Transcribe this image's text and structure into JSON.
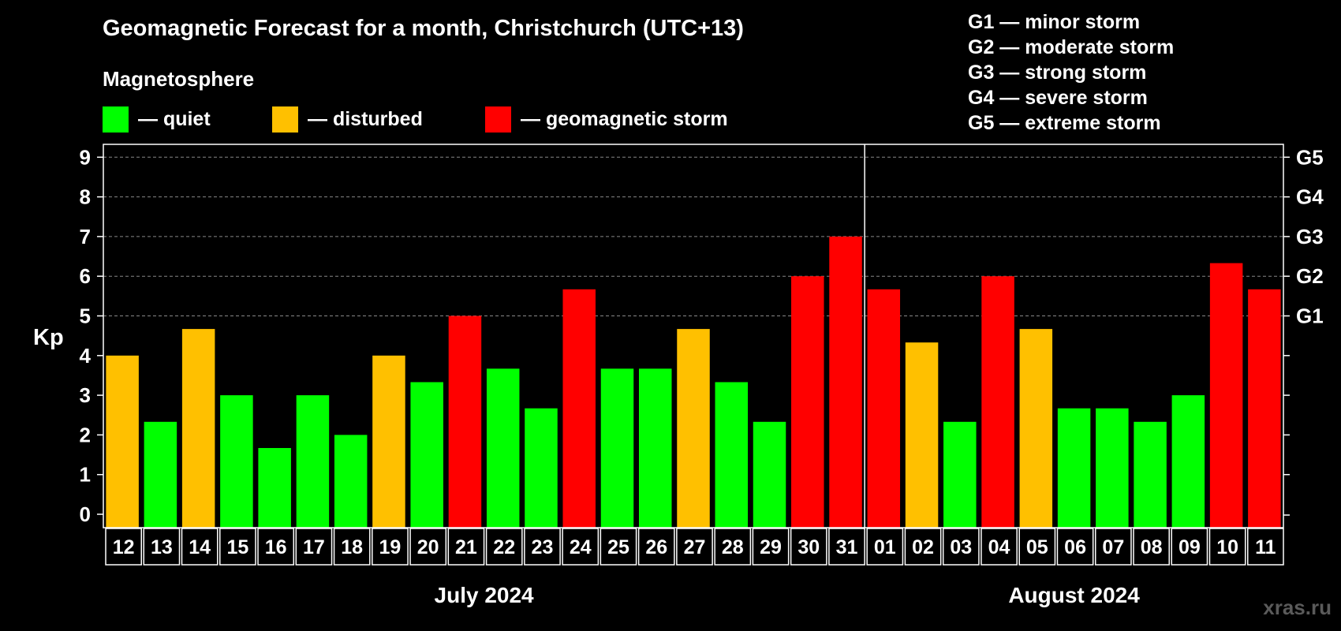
{
  "title": "Geomagnetic Forecast for a month, Christchurch (UTC+13)",
  "subtitle": "Magnetosphere",
  "legend": [
    {
      "label": "— quiet",
      "color": "#00ff00"
    },
    {
      "label": "— disturbed",
      "color": "#ffc000"
    },
    {
      "label": "— geomagnetic storm",
      "color": "#ff0000"
    }
  ],
  "g_scale_legend": [
    "G1 — minor storm",
    "G2 — moderate storm",
    "G3 — strong storm",
    "G4 — severe storm",
    "G5 — extreme storm"
  ],
  "watermark": "xras.ru",
  "chart_data": {
    "type": "bar",
    "ylabel": "Kp",
    "ylim": [
      0,
      9
    ],
    "yticks": [
      0,
      1,
      2,
      3,
      4,
      5,
      6,
      7,
      8,
      9
    ],
    "right_axis_labels": [
      {
        "kp": 5,
        "label": "G1"
      },
      {
        "kp": 6,
        "label": "G2"
      },
      {
        "kp": 7,
        "label": "G3"
      },
      {
        "kp": 8,
        "label": "G4"
      },
      {
        "kp": 9,
        "label": "G5"
      }
    ],
    "grid": "horizontal dashed at Kp 5-9",
    "colors": {
      "quiet": "#00ff00",
      "disturbed": "#ffc000",
      "storm": "#ff0000"
    },
    "months": [
      {
        "label": "July 2024",
        "days": [
          "12",
          "13",
          "14",
          "15",
          "16",
          "17",
          "18",
          "19",
          "20",
          "21",
          "22",
          "23",
          "24",
          "25",
          "26",
          "27",
          "28",
          "29",
          "30",
          "31"
        ]
      },
      {
        "label": "August 2024",
        "days": [
          "01",
          "02",
          "03",
          "04",
          "05",
          "06",
          "07",
          "08",
          "09",
          "10",
          "11"
        ]
      }
    ],
    "categories": [
      "12",
      "13",
      "14",
      "15",
      "16",
      "17",
      "18",
      "19",
      "20",
      "21",
      "22",
      "23",
      "24",
      "25",
      "26",
      "27",
      "28",
      "29",
      "30",
      "31",
      "01",
      "02",
      "03",
      "04",
      "05",
      "06",
      "07",
      "08",
      "09",
      "10",
      "11"
    ],
    "values": [
      4.0,
      2.33,
      4.67,
      3.0,
      1.67,
      3.0,
      2.0,
      4.0,
      3.33,
      5.0,
      3.67,
      2.67,
      5.67,
      3.67,
      3.67,
      4.67,
      3.33,
      2.33,
      6.0,
      7.0,
      5.67,
      4.33,
      2.33,
      6.0,
      4.67,
      2.67,
      2.67,
      2.33,
      3.0,
      6.33,
      5.67
    ],
    "levels": [
      "disturbed",
      "quiet",
      "disturbed",
      "quiet",
      "quiet",
      "quiet",
      "quiet",
      "disturbed",
      "quiet",
      "storm",
      "quiet",
      "quiet",
      "storm",
      "quiet",
      "quiet",
      "disturbed",
      "quiet",
      "quiet",
      "storm",
      "storm",
      "storm",
      "disturbed",
      "quiet",
      "storm",
      "disturbed",
      "quiet",
      "quiet",
      "quiet",
      "quiet",
      "storm",
      "storm"
    ]
  }
}
